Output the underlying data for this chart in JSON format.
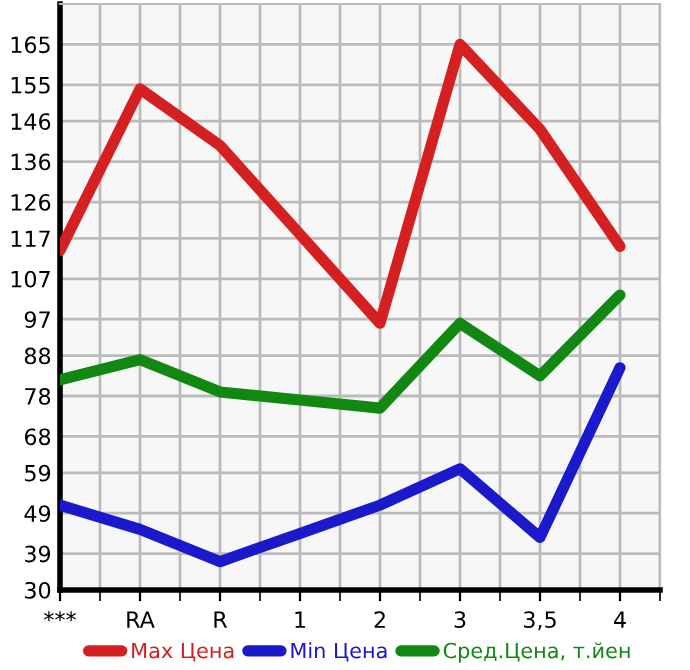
{
  "chart_data": {
    "type": "line",
    "categories": [
      "***",
      "RA",
      "R",
      "1",
      "2",
      "3",
      "3,5",
      "4"
    ],
    "series": [
      {
        "name": "Max Цена",
        "color": "#d42020",
        "values": [
          114,
          154,
          140,
          118,
          96,
          165,
          144,
          115
        ]
      },
      {
        "name": "Min Цена",
        "color": "#1a1acc",
        "values": [
          51,
          45,
          37,
          44,
          51,
          60,
          43,
          85
        ]
      },
      {
        "name": "Сред.Цена, т.йен",
        "color": "#118811",
        "values": [
          82,
          87,
          79,
          77,
          75,
          96,
          83,
          103
        ]
      }
    ],
    "ylim": [
      30,
      175
    ],
    "yticks": [
      30,
      39,
      49,
      59,
      68,
      78,
      88,
      97,
      107,
      117,
      126,
      136,
      146,
      155,
      165
    ],
    "grid": true,
    "legend": "bottom",
    "marker": "none",
    "line_style": "solid"
  }
}
